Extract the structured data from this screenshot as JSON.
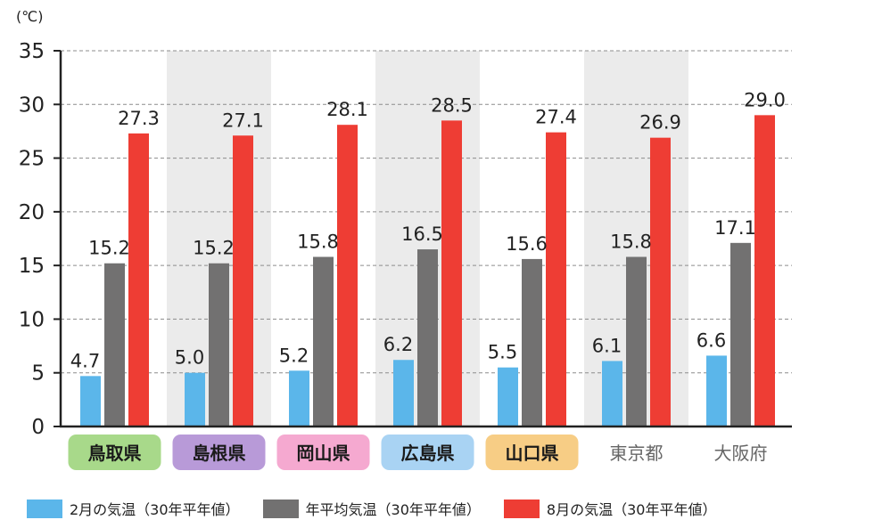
{
  "chart_data": {
    "type": "bar",
    "unit_label": "(℃)",
    "categories": [
      "鳥取県",
      "島根県",
      "岡山県",
      "広島県",
      "山口県",
      "東京都",
      "大阪府"
    ],
    "category_badge_colors": [
      "#a8d98a",
      "#b89ad8",
      "#f5a9d0",
      "#a9d3f3",
      "#f7cd85",
      null,
      null
    ],
    "series": [
      {
        "name": "2月の気温（30年平年値）",
        "color": "#5bb6ea",
        "values": [
          4.7,
          5.0,
          5.2,
          6.2,
          5.5,
          6.1,
          6.6
        ]
      },
      {
        "name": "年平均気温（30年平年値）",
        "color": "#727171",
        "values": [
          15.2,
          15.2,
          15.8,
          16.5,
          15.6,
          15.8,
          17.1
        ]
      },
      {
        "name": "8月の気温（30年平年値）",
        "color": "#ee3d34",
        "values": [
          27.3,
          27.1,
          28.1,
          28.5,
          27.4,
          26.9,
          29.0
        ]
      }
    ],
    "value_labels": [
      [
        "4.7",
        "5.0",
        "5.2",
        "6.2",
        "5.5",
        "6.1",
        "6.6"
      ],
      [
        "15.2",
        "15.2",
        "15.8",
        "16.5",
        "15.6",
        "15.8",
        "17.1"
      ],
      [
        "27.3",
        "27.1",
        "28.1",
        "28.5",
        "27.4",
        "26.9",
        "29.0"
      ]
    ],
    "ylim": [
      0,
      35
    ],
    "yticks": [
      0,
      5,
      10,
      15,
      20,
      25,
      30,
      35
    ],
    "ytick_labels": [
      "0",
      "5",
      "10",
      "15",
      "20",
      "25",
      "30",
      "35"
    ],
    "grid": "dashed horizontal",
    "alternating_column_background": "#ebebeb",
    "legend_position": "bottom"
  }
}
